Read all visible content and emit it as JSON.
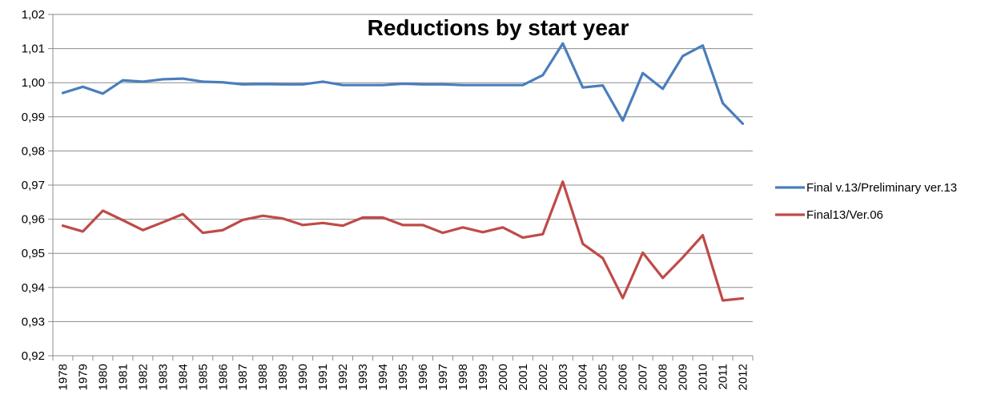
{
  "chart_data": {
    "type": "line",
    "title": "Reductions by start year",
    "xlabel": "",
    "ylabel": "",
    "ylim": [
      0.92,
      1.02
    ],
    "ytick_step": 0.01,
    "y_decimal_separator": ",",
    "grid": "horizontal",
    "legend_position": "right",
    "categories": [
      "1978",
      "1979",
      "1980",
      "1981",
      "1982",
      "1983",
      "1984",
      "1985",
      "1986",
      "1987",
      "1988",
      "1989",
      "1990",
      "1991",
      "1992",
      "1993",
      "1994",
      "1995",
      "1996",
      "1997",
      "1998",
      "1999",
      "2000",
      "2001",
      "2002",
      "2003",
      "2004",
      "2005",
      "2006",
      "2007",
      "2008",
      "2009",
      "2010",
      "2011",
      "2012"
    ],
    "series": [
      {
        "name": "Final v.13/Preliminary ver.13",
        "color": "#4a7ebb",
        "values": [
          0.997,
          0.9988,
          0.9968,
          1.0007,
          1.0003,
          1.001,
          1.0012,
          1.0003,
          1.0001,
          0.9995,
          0.9996,
          0.9995,
          0.9995,
          1.0003,
          0.9993,
          0.9993,
          0.9993,
          0.9997,
          0.9995,
          0.9995,
          0.9993,
          0.9993,
          0.9993,
          0.9993,
          1.0022,
          1.0115,
          0.9986,
          0.9992,
          0.9889,
          1.0028,
          0.9982,
          1.0078,
          1.0109,
          0.994,
          0.988
        ]
      },
      {
        "name": "Final13/Ver.06",
        "color": "#be4b48",
        "values": [
          0.9581,
          0.9564,
          0.9625,
          0.9597,
          0.9568,
          0.9591,
          0.9615,
          0.956,
          0.9568,
          0.9598,
          0.961,
          0.9602,
          0.9583,
          0.9589,
          0.9581,
          0.9605,
          0.9605,
          0.9583,
          0.9583,
          0.956,
          0.9576,
          0.9562,
          0.9576,
          0.9546,
          0.9556,
          0.971,
          0.9528,
          0.9486,
          0.9369,
          0.9502,
          0.9428,
          0.9488,
          0.9553,
          0.9362,
          0.9368
        ]
      }
    ]
  }
}
